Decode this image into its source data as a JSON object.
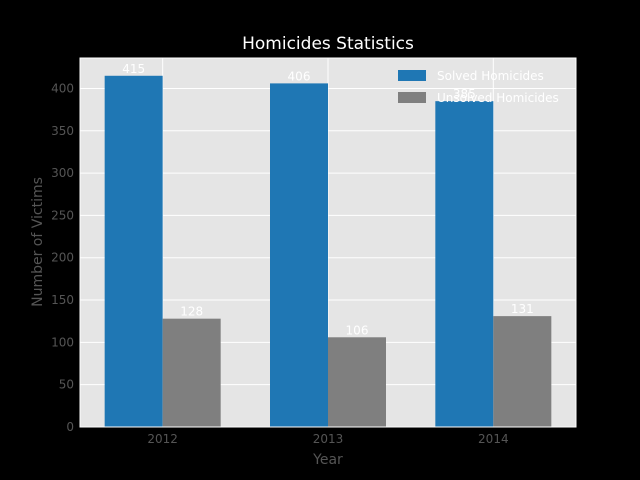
{
  "chart_data": {
    "type": "bar",
    "title": "Homicides Statistics",
    "xlabel": "Year",
    "ylabel": "Number of Victims",
    "categories": [
      "2012",
      "2013",
      "2014"
    ],
    "series": [
      {
        "name": "Solved Homicides",
        "values": [
          415,
          406,
          385
        ],
        "color": "#1f77b4"
      },
      {
        "name": "Unsolved Homicides",
        "values": [
          128,
          106,
          131
        ],
        "color": "#7f7f7f"
      }
    ],
    "ylim": [
      0,
      436
    ],
    "yticks": [
      0,
      50,
      100,
      150,
      200,
      250,
      300,
      350,
      400
    ],
    "grid": true,
    "legend_position": "top-right",
    "colors": {
      "background": "#000000",
      "plot_area": "#e5e5e5",
      "grid": "#ffffff",
      "axis_text": "#555555",
      "title": "#ffffff"
    }
  }
}
